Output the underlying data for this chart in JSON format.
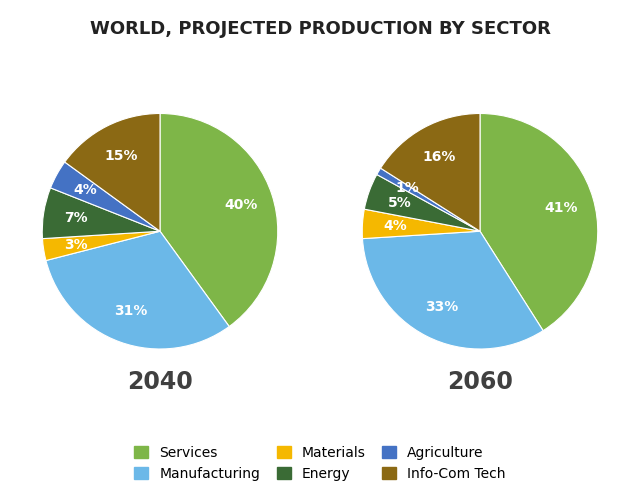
{
  "title": "WORLD, PROJECTED PRODUCTION BY SECTOR",
  "title_fontsize": 13,
  "title_fontweight": "bold",
  "years": [
    "2040",
    "2060"
  ],
  "sectors": [
    "Services",
    "Manufacturing",
    "Materials",
    "Energy",
    "Agriculture",
    "Info-Com Tech"
  ],
  "colors": [
    "#7EB648",
    "#6BB8E8",
    "#F5B800",
    "#3A6B35",
    "#4472C4",
    "#8B6914"
  ],
  "values_2040": [
    40,
    31,
    3,
    7,
    4,
    15
  ],
  "values_2060": [
    41,
    33,
    4,
    5,
    1,
    16
  ],
  "label_fontsize": 10,
  "year_fontsize": 17,
  "year_fontweight": "bold",
  "year_color": "#404040",
  "legend_fontsize": 10,
  "background_color": "#ffffff",
  "legend_order": [
    0,
    1,
    2,
    3,
    4,
    5
  ]
}
